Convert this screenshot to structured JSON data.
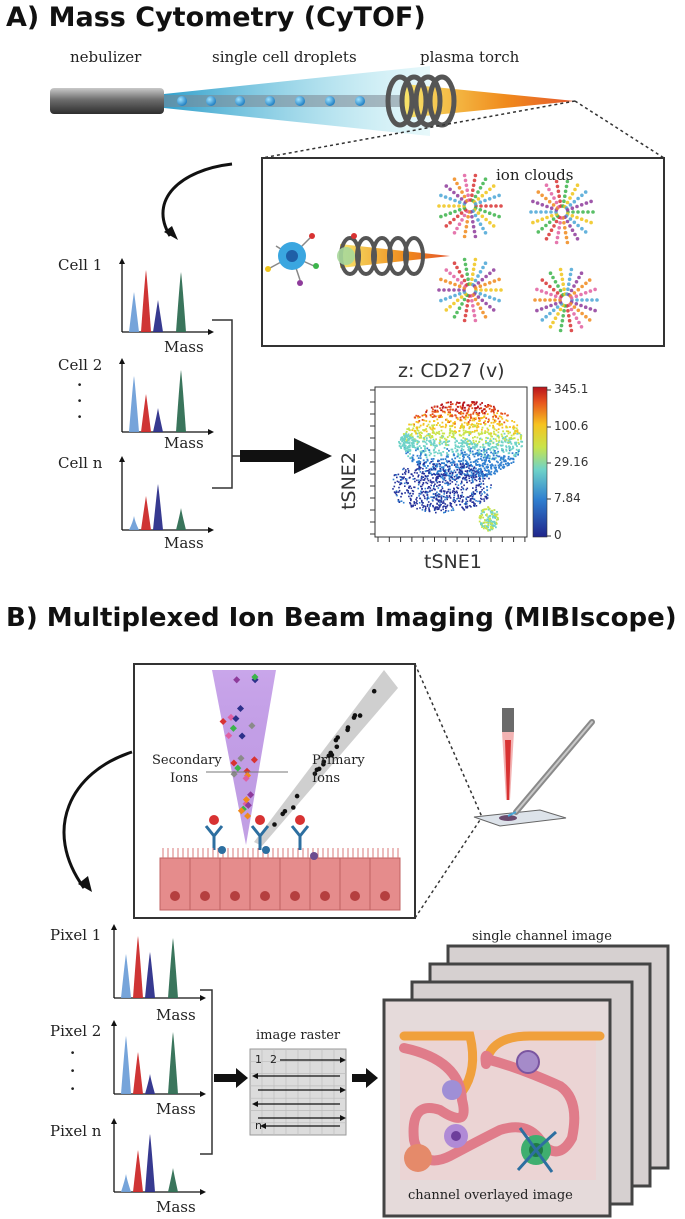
{
  "section_a": {
    "title": "A) Mass Cytometry (CyTOF)",
    "nebulizer": "nebulizer",
    "droplets": "single cell droplets",
    "torch": "plasma torch",
    "ion_clouds": "ion clouds",
    "cells": [
      "Cell 1",
      "Cell 2",
      "Cell n"
    ],
    "ellipsis": "·",
    "mass": "Mass",
    "tsne": {
      "title": "z: CD27 (v)",
      "xlabel": "tSNE1",
      "ylabel": "tSNE2",
      "scale_ticks": [
        "345.1",
        "100.6",
        "29.16",
        "7.84",
        "0"
      ]
    }
  },
  "section_b": {
    "title": "B) Multiplexed Ion Beam Imaging (MIBIscope)",
    "secondary_1": "Secondary",
    "secondary_2": "Ions",
    "primary_1": "Primary",
    "primary_2": "Ions",
    "pixels": [
      "Pixel 1",
      "Pixel 2",
      "Pixel n"
    ],
    "ellipsis": "·",
    "mass": "Mass",
    "raster_title": "image raster",
    "raster_1": "1",
    "raster_2": "2",
    "raster_n": "n",
    "single_channel": "single channel image",
    "overlay": "channel overlayed image"
  },
  "colors": {
    "peak_lightblue": "#6f9fd8",
    "peak_red": "#cc2a2a",
    "peak_navy": "#2c2f8a",
    "peak_green": "#2f6e53",
    "tissue": "#e58c8c",
    "plasma_orange": "#f08a1c"
  }
}
